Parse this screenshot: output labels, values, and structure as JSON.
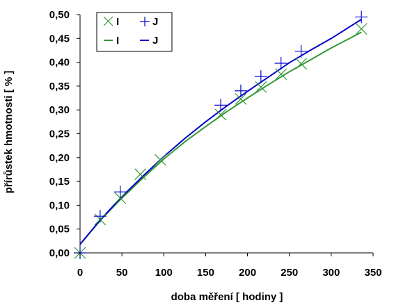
{
  "chart_data": {
    "type": "scatter",
    "title": "",
    "xlabel": "doba měření [ hodiny ]",
    "ylabel": "přírůstek hmotnosti [ % ]",
    "xlim": [
      0,
      350
    ],
    "ylim": [
      0,
      0.5
    ],
    "x_ticks": [
      0,
      50,
      100,
      150,
      200,
      250,
      300,
      350
    ],
    "x_tick_labels": [
      "0",
      "50",
      "100",
      "150",
      "200",
      "250",
      "300",
      "350"
    ],
    "y_ticks": [
      0,
      0.05,
      0.1,
      0.15,
      0.2,
      0.25,
      0.3,
      0.35,
      0.4,
      0.45,
      0.5
    ],
    "y_tick_labels": [
      "0,00",
      "0,05",
      "0,10",
      "0,15",
      "0,20",
      "0,25",
      "0,30",
      "0,35",
      "0,40",
      "0,45",
      "0,50"
    ],
    "grid": false,
    "legend_position": "top-left",
    "series": [
      {
        "name": "I",
        "kind": "points",
        "marker": "x",
        "color": "#339933",
        "x": [
          0,
          24,
          48,
          72,
          96,
          168,
          192,
          216,
          240,
          264,
          336
        ],
        "y": [
          0.0,
          0.07,
          0.115,
          0.165,
          0.195,
          0.29,
          0.323,
          0.348,
          0.375,
          0.397,
          0.47
        ]
      },
      {
        "name": "J",
        "kind": "points",
        "marker": "+",
        "color": "#0000cc",
        "x": [
          0,
          24,
          48,
          168,
          192,
          216,
          240,
          264,
          336
        ],
        "y": [
          0.0,
          0.077,
          0.128,
          0.31,
          0.34,
          0.37,
          0.398,
          0.423,
          0.495
        ]
      },
      {
        "name": "I",
        "kind": "line",
        "color": "#339933",
        "x": [
          0,
          25,
          50,
          75,
          100,
          125,
          150,
          175,
          200,
          225,
          250,
          275,
          300,
          336
        ],
        "y": [
          0.018,
          0.07,
          0.115,
          0.157,
          0.197,
          0.233,
          0.265,
          0.296,
          0.325,
          0.353,
          0.38,
          0.405,
          0.43,
          0.463
        ]
      },
      {
        "name": "J",
        "kind": "line",
        "color": "#0000cc",
        "x": [
          0,
          25,
          50,
          75,
          100,
          125,
          150,
          175,
          200,
          225,
          250,
          275,
          300,
          336
        ],
        "y": [
          0.018,
          0.071,
          0.118,
          0.161,
          0.202,
          0.24,
          0.275,
          0.308,
          0.339,
          0.369,
          0.399,
          0.425,
          0.45,
          0.49
        ]
      }
    ]
  }
}
